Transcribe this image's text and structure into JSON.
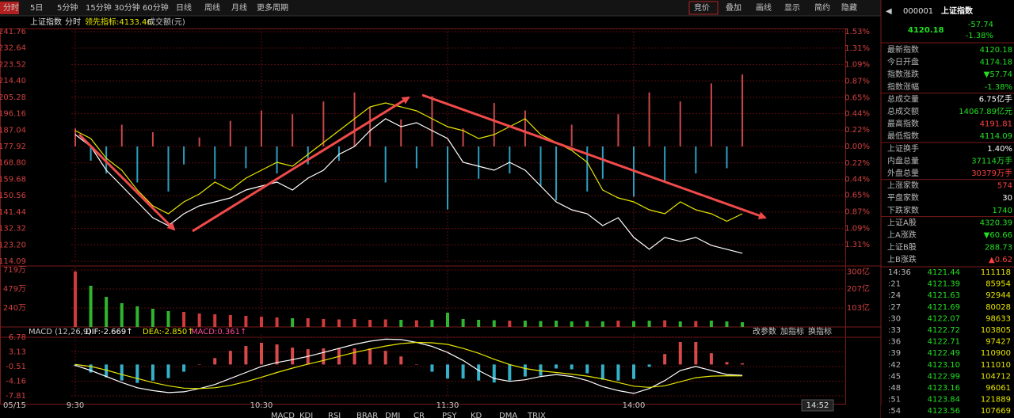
{
  "toolbar": {
    "tabs": [
      "分时",
      "5日",
      "5分钟",
      "15分钟",
      "30分钟",
      "60分钟",
      "日线",
      "周线",
      "月线",
      "更多周期"
    ],
    "right": [
      "竞价",
      "叠加",
      "画线",
      "显示",
      "简约",
      "隐藏"
    ]
  },
  "info_bar": {
    "period": "分时",
    "amount": "成交额(元)"
  },
  "time_axis": {
    "date": "05/15",
    "cursor": "14:52"
  },
  "chart_data": [
    {
      "type": "line",
      "x": [
        0,
        5,
        10,
        15,
        20,
        25,
        30,
        35,
        40,
        45,
        50,
        55,
        60,
        65,
        70,
        75,
        80,
        85,
        90,
        95,
        100,
        105,
        110,
        115,
        120,
        125,
        130,
        135,
        140,
        145,
        150,
        155,
        160,
        165,
        170,
        175,
        180,
        185,
        190,
        195,
        200,
        205,
        210,
        215
      ],
      "xlim": [
        0,
        240
      ],
      "ylim": [
        4114.09,
        4241.76
      ],
      "yticks": [
        4241.76,
        4232.64,
        4223.52,
        {
          "value": 4214.4,
          "label": "4214.40"
        },
        4205.28,
        4196.16,
        4187.04,
        4177.92,
        {
          "value": 4168.8,
          "label": "4168.80"
        },
        4159.68,
        4150.56,
        4141.44,
        4132.32,
        {
          "value": 4123.2,
          "label": "4123.20"
        },
        4114.09
      ],
      "y2lim": [
        -1.53,
        1.53
      ],
      "y2ticks": [
        {
          "value": 1.53,
          "label": "1.53%"
        },
        {
          "value": 1.31,
          "label": "1.31%"
        },
        {
          "value": 1.09,
          "label": "1.09%"
        },
        {
          "value": 0.87,
          "label": "0.87%"
        },
        {
          "value": 0.65,
          "label": "0.65%"
        },
        {
          "value": 0.44,
          "label": "0.44%"
        },
        {
          "value": 0.22,
          "label": "0.22%"
        },
        {
          "value": 0,
          "label": "0.00%"
        },
        {
          "value": -0.22,
          "label": "0.22%"
        },
        {
          "value": -0.44,
          "label": "0.44%"
        },
        {
          "value": -0.65,
          "label": "0.65%"
        },
        {
          "value": -0.87,
          "label": "0.87%"
        },
        {
          "value": -1.09,
          "label": "1.09%"
        },
        {
          "value": -1.31,
          "label": "1.31%"
        }
      ],
      "grid": true,
      "series": [
        {
          "axis": "y2",
          "type": "bar",
          "color": "#c84848",
          "negative_color": "#2c9fbf",
          "values": [
            0.24,
            -0.19,
            -0.36,
            0.29,
            -0.48,
            0.19,
            -0.6,
            -0.24,
            0.12,
            -0.43,
            0.34,
            -0.29,
            0.48,
            -0.36,
            0.43,
            -0.24,
            0.6,
            -0.19,
            0.72,
            0.53,
            -0.48,
            0.36,
            -0.29,
            0.67,
            -0.84,
            0.24,
            -0.43,
            0.58,
            -0.36,
            0.48,
            -0.53,
            -0.72,
            0.29,
            -0.6,
            -0.43,
            0.43,
            -0.67,
            0.72,
            -0.48,
            0.6,
            -0.36,
            0.84,
            -0.29,
            0.96
          ]
        },
        {
          "name": "上证指数",
          "color": "#ffffff",
          "values": [
            4184.52,
            4177.92,
            4164.72,
            4155.92,
            4147.12,
            4138.32,
            4133.92,
            4140.52,
            4144.92,
            4147.12,
            4149.32,
            4153.72,
            4155.92,
            4158.12,
            4153.72,
            4160.32,
            4164.72,
            4173.52,
            4177.92,
            4186.72,
            4193.32,
            4188.92,
            4191.12,
            4186.72,
            4182.32,
            4169.12,
            4166.92,
            4164.72,
            4169.12,
            4164.72,
            4155.92,
            4147.12,
            4142.72,
            4140.52,
            4133.92,
            4138.32,
            4127.32,
            4120.72,
            4127.32,
            4125.12,
            4127.32,
            4122.92,
            4120.72,
            4118.52
          ]
        },
        {
          "name": "领先指标:4133.46",
          "color": "#e6e600",
          "values": [
            4186.72,
            4182.32,
            4171.32,
            4164.72,
            4153.72,
            4144.92,
            4140.52,
            4147.12,
            4151.52,
            4158.12,
            4153.72,
            4160.32,
            4164.72,
            4169.12,
            4166.92,
            4173.52,
            4180.12,
            4186.72,
            4193.32,
            4199.92,
            4202.12,
            4199.92,
            4197.72,
            4193.32,
            4188.92,
            4186.72,
            4182.32,
            4184.52,
            4188.92,
            4193.32,
            4184.52,
            4180.12,
            4175.72,
            4169.12,
            4153.72,
            4149.32,
            4147.12,
            4142.72,
            4140.52,
            4147.12,
            4142.72,
            4140.52,
            4136.32,
            4140.52
          ]
        }
      ]
    },
    {
      "type": "bar",
      "x": [
        0,
        5,
        10,
        15,
        20,
        25,
        30,
        35,
        40,
        45,
        50,
        55,
        60,
        65,
        70,
        75,
        80,
        85,
        90,
        95,
        100,
        105,
        110,
        115,
        120,
        125,
        130,
        135,
        140,
        145,
        150,
        155,
        160,
        165,
        170,
        175,
        180,
        185,
        190,
        195,
        200,
        205,
        210,
        215
      ],
      "xlim": [
        0,
        240
      ],
      "values": [
        700,
        520,
        380,
        300,
        260,
        230,
        200,
        190,
        170,
        160,
        150,
        140,
        130,
        120,
        110,
        110,
        100,
        95,
        100,
        90,
        95,
        90,
        85,
        90,
        180,
        100,
        90,
        85,
        80,
        80,
        75,
        80,
        70,
        75,
        70,
        80,
        75,
        80,
        85,
        70,
        75,
        80,
        70,
        60
      ],
      "up_color": "#d03a3a",
      "down_color": "#2fb52f",
      "ylim": [
        0,
        719
      ],
      "yticks": [
        {
          "value": 240,
          "label": "240万"
        },
        {
          "value": 479,
          "label": "479万"
        },
        {
          "value": 719,
          "label": "719万"
        }
      ],
      "y2lim": [
        0,
        311
      ],
      "y2ticks": [
        {
          "value": 103,
          "label": "103亿"
        },
        {
          "value": 207,
          "label": "207亿"
        },
        {
          "value": 300,
          "label": "300亿"
        }
      ],
      "grid": true
    },
    {
      "type": "line",
      "title": "MACD (12,26,9)",
      "x": [
        0,
        5,
        10,
        15,
        20,
        25,
        30,
        35,
        40,
        45,
        50,
        55,
        60,
        65,
        70,
        75,
        80,
        85,
        90,
        95,
        100,
        105,
        110,
        115,
        120,
        125,
        130,
        135,
        140,
        145,
        150,
        155,
        160,
        165,
        170,
        175,
        180,
        185,
        190,
        195,
        200,
        205,
        210,
        215
      ],
      "xlim": [
        0,
        240
      ],
      "xticks": [
        {
          "value": 0,
          "label": "9:30"
        },
        {
          "value": 60,
          "label": "10:30"
        },
        {
          "value": 120,
          "label": "11:30"
        },
        {
          "value": 180,
          "label": "14:00"
        }
      ],
      "ylim": [
        -7.81,
        6.78
      ],
      "yticks": [
        6.78,
        3.13,
        -0.51,
        -4.16,
        -7.81
      ],
      "grid": true,
      "buttons": [
        "改参数",
        "加指标",
        "换指标"
      ],
      "series": [
        {
          "name": "MACD:0.361↑",
          "type": "bar",
          "color": "#d84a4a",
          "negative_color": "#34b0c8",
          "values": [
            -0.4,
            -2,
            -3.2,
            -4,
            -4.6,
            -4,
            -3.4,
            -1.8,
            0,
            1.6,
            3.4,
            4.6,
            5.4,
            5,
            4.2,
            3.8,
            4,
            4,
            4,
            4,
            3.4,
            2,
            0,
            -1.8,
            -3.5,
            -3.5,
            -4,
            -4.5,
            -4,
            -3,
            -2.8,
            -1,
            -1.2,
            -2.2,
            -3.8,
            -4,
            -3.6,
            -0.6,
            2.6,
            5.6,
            5.6,
            2.8,
            0.6,
            0.3
          ]
        },
        {
          "name": "DIF:-2.669↑",
          "color": "#ffffff",
          "values": [
            -0.2,
            -1.5,
            -3,
            -4.5,
            -5.8,
            -6.5,
            -7,
            -6.8,
            -6,
            -5,
            -3.5,
            -2,
            -0.5,
            0.5,
            1.2,
            2,
            3,
            4,
            5,
            5.8,
            6.3,
            6.2,
            5.5,
            4.5,
            3,
            1,
            -1.5,
            -3.5,
            -4.2,
            -3.8,
            -3,
            -2.5,
            -3,
            -4,
            -5.5,
            -6.5,
            -7.2,
            -6,
            -4,
            -1.5,
            -0.5,
            -1.5,
            -2.5,
            -2.7
          ]
        },
        {
          "name": "DEA:-2.850↑",
          "color": "#e6e600",
          "values": [
            0,
            -0.5,
            -1.4,
            -2.5,
            -3.5,
            -4.5,
            -5.3,
            -5.9,
            -6,
            -5.8,
            -5.2,
            -4.3,
            -3.2,
            -2,
            -0.9,
            0.1,
            1,
            2,
            3,
            3.8,
            4.6,
            5.2,
            5.5,
            5.4,
            5,
            4,
            2.8,
            1.3,
            0,
            -1,
            -1.6,
            -2,
            -2.4,
            -2.9,
            -3.6,
            -4.5,
            -5.4,
            -5.7,
            -5.3,
            -4.3,
            -3.3,
            -2.9,
            -2.8,
            -2.85
          ]
        }
      ]
    }
  ],
  "side_panel": {
    "code": "000001",
    "name": "上证指数",
    "price": "4120.18",
    "change": "-57.74",
    "change_pct": "-1.38%",
    "rows": [
      {
        "label": "最新指数",
        "value": "4120.18",
        "color": "#22e022"
      },
      {
        "label": "今日开盘",
        "value": "4174.18",
        "color": "#22e022"
      },
      {
        "label": "指数涨跌",
        "value": "▼57.74",
        "color": "#22e022"
      },
      {
        "label": "指数涨幅",
        "value": "-1.38%",
        "color": "#22e022"
      },
      {
        "label": "总成交量",
        "value": "6.75亿手",
        "color": "#ffffff"
      },
      {
        "label": "总成交额",
        "value": "14067.89亿元",
        "color": "#22e022"
      },
      {
        "label": "最高指数",
        "value": "4191.81",
        "color": "#ff4040"
      },
      {
        "label": "最低指数",
        "value": "4114.09",
        "color": "#22e022"
      },
      {
        "label": "上证换手",
        "value": "1.40%",
        "color": "#ffffff"
      },
      {
        "label": "内盘总量",
        "value": "37114万手",
        "color": "#22e022"
      },
      {
        "label": "外盘总量",
        "value": "30379万手",
        "color": "#ff4040"
      },
      {
        "label": "上涨家数",
        "value": "574",
        "color": "#ff4040"
      },
      {
        "label": "平盘家数",
        "value": "30",
        "color": "#ffffff"
      },
      {
        "label": "下跌家数",
        "value": "1740",
        "color": "#22e022"
      },
      {
        "label": "上证A股",
        "value": "4320.39",
        "color": "#22e022"
      },
      {
        "label": "上A涨跌",
        "value": "▼60.66",
        "color": "#22e022"
      },
      {
        "label": "上证B股",
        "value": "288.73",
        "color": "#22e022"
      },
      {
        "label": "上B涨跌",
        "value": "▲0.62",
        "color": "#ff4040"
      }
    ],
    "ticks": [
      [
        "14:36",
        "4121.44",
        "111118"
      ],
      [
        ":21",
        "4121.39",
        "85954"
      ],
      [
        ":24",
        "4121.63",
        "92944"
      ],
      [
        ":27",
        "4121.69",
        "80028"
      ],
      [
        ":30",
        "4122.07",
        "98633"
      ],
      [
        ":33",
        "4122.72",
        "103805"
      ],
      [
        ":36",
        "4122.71",
        "97427"
      ],
      [
        ":39",
        "4122.49",
        "110900"
      ],
      [
        ":42",
        "4123.10",
        "111010"
      ],
      [
        ":45",
        "4122.99",
        "104712"
      ],
      [
        ":48",
        "4123.16",
        "96061"
      ],
      [
        ":51",
        "4123.84",
        "121889"
      ],
      [
        ":54",
        "4123.56",
        "107669"
      ]
    ]
  },
  "bottom_tabs": [
    "MACD",
    "KDJ",
    "RSI",
    "BRAR",
    "DMI",
    "CR",
    "PSY",
    "KD",
    "DMA",
    "TRIX"
  ]
}
